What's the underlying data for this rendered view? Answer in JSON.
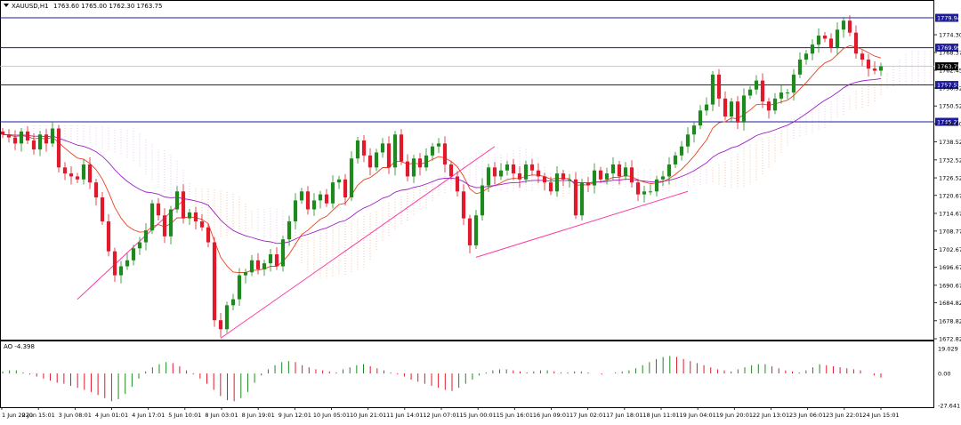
{
  "header": {
    "symbol": "XAUUSD,H1",
    "ohlc": "1763.60 1765.00 1762.30 1763.75"
  },
  "ao_header": {
    "label": "AO -4.398"
  },
  "colors": {
    "bull": "#1e8a1e",
    "bear": "#e0192b",
    "ma_fast": "#e8431f",
    "ma_slow": "#a020c8",
    "trend": "#ff3aa0",
    "hline": "#1c1c9c",
    "cloud": "#f0a070",
    "cloud2": "#d8a8e8"
  },
  "chart_data": [
    {
      "type": "candlestick",
      "symbol": "XAUUSD",
      "timeframe": "H1",
      "ylim": [
        1672.82,
        1785
      ],
      "y_ticks": [
        "1774.30",
        "1768.37",
        "1762.45",
        "1756.52",
        "1750.52",
        "1744.60",
        "1738.52",
        "1732.52",
        "1726.52",
        "1720.67",
        "1714.67",
        "1708.77",
        "1702.67",
        "1696.67",
        "1690.67",
        "1684.82",
        "1678.82",
        "1672.82"
      ],
      "x_ticks": [
        "1 Jun 2020",
        "2 Jun 15:01",
        "3 Jun 08:01",
        "4 Jun 01:01",
        "4 Jun 17:01",
        "5 Jun 10:01",
        "8 Jun 03:01",
        "8 Jun 19:01",
        "9 Jun 12:01",
        "10 Jun 05:01",
        "10 Jun 21:01",
        "11 Jun 14:01",
        "12 Jun 07:01",
        "15 Jun 00:01",
        "15 Jun 16:01",
        "16 Jun 09:01",
        "17 Jun 02:01",
        "17 Jun 18:01",
        "18 Jun 11:01",
        "19 Jun 04:01",
        "19 Jun 20:01",
        "22 Jun 13:01",
        "23 Jun 06:01",
        "23 Jun 22:01",
        "24 Jun 15:01"
      ],
      "price_lines": [
        {
          "label": "1779.94",
          "value": 1779.94
        },
        {
          "label": "1769.99",
          "value": 1769.99
        },
        {
          "label": "1757.53",
          "value": 1757.53
        },
        {
          "label": "1745.23",
          "value": 1745.23
        }
      ],
      "current_price": {
        "label": "1763.75",
        "value": 1763.75
      },
      "series": [
        {
          "name": "close",
          "values": [
            1741,
            1740,
            1738,
            1742,
            1739,
            1736,
            1741,
            1738,
            1743,
            1730,
            1728,
            1727,
            1726,
            1731,
            1725,
            1720,
            1712,
            1702,
            1694,
            1697,
            1699,
            1703,
            1705,
            1709,
            1718,
            1714,
            1707,
            1716,
            1722,
            1713,
            1715,
            1712,
            1710,
            1705,
            1679,
            1676,
            1684,
            1686,
            1694,
            1695,
            1699,
            1696,
            1698,
            1701,
            1697,
            1706,
            1712,
            1719,
            1722,
            1716,
            1719,
            1721,
            1718,
            1725,
            1726,
            1720,
            1733,
            1739,
            1734,
            1730,
            1735,
            1738,
            1730,
            1741,
            1732,
            1727,
            1733,
            1730,
            1734,
            1737,
            1738,
            1731,
            1727,
            1722,
            1713,
            1704,
            1714,
            1724,
            1730,
            1727,
            1729,
            1731,
            1728,
            1726,
            1731,
            1729,
            1727,
            1725,
            1722,
            1728,
            1726,
            1726,
            1714,
            1725,
            1724,
            1729,
            1726,
            1728,
            1731,
            1727,
            1730,
            1725,
            1721,
            1722,
            1722,
            1726,
            1727,
            1731,
            1734,
            1737,
            1741,
            1744,
            1749,
            1751,
            1761,
            1753,
            1747,
            1752,
            1745,
            1754,
            1756,
            1759,
            1752,
            1749,
            1753,
            1755,
            1755,
            1761,
            1766,
            1768,
            1771,
            1774,
            1773,
            1770,
            1776,
            1779,
            1775,
            1768,
            1766,
            1763,
            1762.3,
            1763.75
          ]
        },
        {
          "name": "AO",
          "range": [
            -27.641,
            19.029
          ],
          "values": [
            2,
            3,
            3,
            1,
            -1,
            -3,
            -5,
            -7,
            -9,
            -10,
            -12,
            -14,
            -16,
            -18,
            -21,
            -24,
            -27,
            -25,
            -20,
            -13,
            -5,
            2,
            6,
            9,
            11,
            10,
            7,
            3,
            -1,
            -5,
            -10,
            -16,
            -22,
            -26,
            -27,
            -24,
            -18,
            -9,
            -2,
            4,
            8,
            11,
            12,
            11,
            8,
            6,
            4,
            3,
            2,
            1,
            4,
            6,
            8,
            9,
            7,
            5,
            3,
            1,
            -1,
            -3,
            -6,
            -8,
            -10,
            -12,
            -14,
            -16,
            -17,
            -14,
            -10,
            -6,
            -2,
            1,
            3,
            4,
            4,
            3,
            2,
            1,
            2,
            3,
            3,
            2,
            1,
            1,
            2,
            2,
            1,
            0,
            -1,
            0,
            1,
            2,
            3,
            5,
            8,
            11,
            14,
            16,
            17,
            16,
            14,
            12,
            10,
            8,
            6,
            4,
            3,
            2,
            4,
            6,
            8,
            9,
            9,
            7,
            5,
            3,
            2,
            1,
            3,
            6,
            9,
            8,
            7,
            6,
            5,
            4,
            3,
            0,
            -2,
            -4
          ]
        }
      ]
    }
  ]
}
